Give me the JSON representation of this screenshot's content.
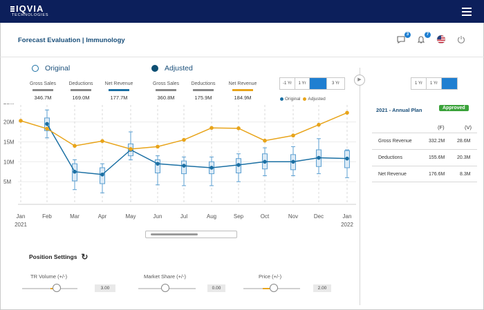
{
  "brand": {
    "line1": "IQVIA",
    "line2": "TECHNOLOGIES"
  },
  "header": {
    "title": "Forecast Evaluation | Immunology",
    "messages_count": "3",
    "notifications_count": "7"
  },
  "legend": {
    "original": "Original",
    "adjusted": "Adjusted"
  },
  "metrics_original": [
    {
      "label": "Gross Sales",
      "value": "346.7M",
      "color": "#8a8a8a"
    },
    {
      "label": "Deductions",
      "value": "169.0M",
      "color": "#8a8a8a"
    },
    {
      "label": "Net Revenue",
      "value": "177.7M",
      "color": "#1a6fa3"
    }
  ],
  "metrics_adjusted": [
    {
      "label": "Gross Sales",
      "value": "360.8M",
      "color": "#8a8a8a"
    },
    {
      "label": "Deductions",
      "value": "175.9M",
      "color": "#8a8a8a"
    },
    {
      "label": "Net Revenue",
      "value": "184.9M",
      "color": "#e8a41a"
    }
  ],
  "range_tabs": [
    "-1 Yr",
    "1 Yr",
    "",
    "3 Yr"
  ],
  "range_tabs_right": [
    "1 Yr",
    "1 Yr",
    ""
  ],
  "small_legend": {
    "original": "Original",
    "adjusted": "Adjusted"
  },
  "chart_data": {
    "type": "line",
    "title": "",
    "categories": [
      "Jan",
      "Feb",
      "Mar",
      "Apr",
      "May",
      "Jun",
      "Jul",
      "Aug",
      "Sep",
      "Oct",
      "Nov",
      "Dec",
      "Jan"
    ],
    "category_sublabels": [
      "2021",
      "",
      "",
      "",
      "",
      "",
      "",
      "",
      "",
      "",
      "",
      "",
      "2022"
    ],
    "y_ticks": [
      "25M",
      "20M",
      "15M",
      "10M",
      "5M"
    ],
    "ylim": [
      0,
      26
    ],
    "series": [
      {
        "name": "Original",
        "color": "#1a6fa3",
        "values": [
          null,
          19.5,
          7.5,
          6.8,
          13.0,
          9.5,
          9.0,
          8.5,
          9.2,
          10.0,
          10.0,
          11.0,
          10.8
        ]
      },
      {
        "name": "Adjusted",
        "color": "#e8a41a",
        "values": [
          20.3,
          18.3,
          14.0,
          15.2,
          13.2,
          13.8,
          15.5,
          18.5,
          18.4,
          15.3,
          16.6,
          19.3,
          22.3
        ]
      }
    ],
    "boxplots": [
      null,
      {
        "low": 16.0,
        "q1": 17.8,
        "q3": 21.0,
        "high": 23.0
      },
      {
        "low": 3.0,
        "q1": 5.2,
        "q3": 9.5,
        "high": 10.5
      },
      {
        "low": 2.2,
        "q1": 4.5,
        "q3": 8.5,
        "high": 9.5
      },
      {
        "low": 10.5,
        "q1": 11.5,
        "q3": 14.5,
        "high": 17.5
      },
      {
        "low": 4.2,
        "q1": 7.2,
        "q3": 10.5,
        "high": 11.5
      },
      {
        "low": 4.0,
        "q1": 7.0,
        "q3": 10.2,
        "high": 11.2
      },
      {
        "low": 4.0,
        "q1": 7.0,
        "q3": 10.0,
        "high": 11.2
      },
      {
        "low": 5.0,
        "q1": 7.2,
        "q3": 10.8,
        "high": 12.0
      },
      {
        "low": 6.5,
        "q1": 8.2,
        "q3": 12.0,
        "high": 13.5
      },
      {
        "low": 6.5,
        "q1": 8.0,
        "q3": 11.8,
        "high": 13.8
      },
      {
        "low": 7.0,
        "q1": 8.8,
        "q3": 13.0,
        "high": 15.8
      },
      {
        "low": 6.0,
        "q1": 8.5,
        "q3": 12.8,
        "high": 13.0
      }
    ]
  },
  "position_settings": {
    "title": "Position Settings",
    "sliders": [
      {
        "label": "TR Volume (+/-)",
        "value": "3.00",
        "level": 0.62
      },
      {
        "label": "Market Share (+/-)",
        "value": "0.00",
        "level": 0.5
      },
      {
        "label": "Price (+/-)",
        "value": "2.00",
        "level": 0.57
      }
    ]
  },
  "plan": {
    "title": "2021 - Annual Plan",
    "status": "Approved",
    "col_f": "(F)",
    "col_v": "(V)",
    "rows": [
      {
        "label": "Gross Revenue",
        "f": "332.2M",
        "v": "28.6M"
      },
      {
        "label": "Deductions",
        "f": "155.6M",
        "v": "20.3M"
      },
      {
        "label": "Net Revenue",
        "f": "176.6M",
        "v": "8.3M"
      }
    ]
  }
}
